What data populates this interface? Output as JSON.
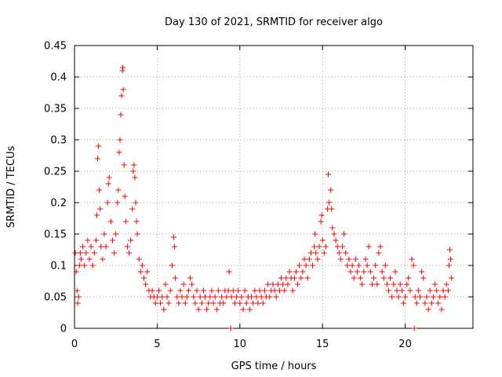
{
  "chart_data": {
    "type": "scatter",
    "title": "Day 130 of 2021, SRMTID for receiver algo",
    "xlabel": "GPS time / hours",
    "ylabel": "SRMTID / TECUs",
    "xlim": [
      0,
      24.1
    ],
    "ylim": [
      0,
      0.45
    ],
    "xticks": [
      0,
      5,
      10,
      15,
      20
    ],
    "xtick_labels": [
      "0",
      "5",
      "10",
      "15",
      "20"
    ],
    "yticks": [
      0,
      0.05,
      0.1,
      0.15,
      0.2,
      0.25,
      0.3,
      0.35,
      0.4,
      0.45
    ],
    "ytick_labels": [
      "0",
      "0.05",
      "0.1",
      "0.15",
      "0.2",
      "0.25",
      "0.3",
      "0.35",
      "0.4",
      "0.45"
    ],
    "grid": true,
    "marker": "+",
    "series": [
      {
        "name": "SRMTID",
        "color": "#ff0000",
        "points": [
          [
            0.05,
            0.12
          ],
          [
            0.1,
            0.09
          ],
          [
            0.15,
            0.06
          ],
          [
            0.2,
            0.04
          ],
          [
            0.25,
            0.05
          ],
          [
            0.3,
            0.1
          ],
          [
            0.35,
            0.12
          ],
          [
            0.4,
            0.11
          ],
          [
            0.5,
            0.13
          ],
          [
            0.6,
            0.1
          ],
          [
            0.7,
            0.12
          ],
          [
            0.8,
            0.14
          ],
          [
            0.9,
            0.11
          ],
          [
            1.0,
            0.13
          ],
          [
            1.1,
            0.1
          ],
          [
            1.2,
            0.12
          ],
          [
            1.3,
            0.14
          ],
          [
            1.35,
            0.18
          ],
          [
            1.4,
            0.27
          ],
          [
            1.45,
            0.29
          ],
          [
            1.5,
            0.22
          ],
          [
            1.55,
            0.19
          ],
          [
            1.6,
            0.13
          ],
          [
            1.7,
            0.11
          ],
          [
            1.8,
            0.15
          ],
          [
            1.9,
            0.13
          ],
          [
            2.0,
            0.2
          ],
          [
            2.05,
            0.23
          ],
          [
            2.1,
            0.24
          ],
          [
            2.2,
            0.17
          ],
          [
            2.3,
            0.14
          ],
          [
            2.4,
            0.12
          ],
          [
            2.5,
            0.15
          ],
          [
            2.6,
            0.2
          ],
          [
            2.65,
            0.22
          ],
          [
            2.7,
            0.28
          ],
          [
            2.75,
            0.3
          ],
          [
            2.8,
            0.34
          ],
          [
            2.85,
            0.37
          ],
          [
            2.9,
            0.41
          ],
          [
            2.92,
            0.415
          ],
          [
            2.95,
            0.38
          ],
          [
            3.0,
            0.26
          ],
          [
            3.05,
            0.21
          ],
          [
            3.1,
            0.17
          ],
          [
            3.2,
            0.13
          ],
          [
            3.3,
            0.12
          ],
          [
            3.4,
            0.14
          ],
          [
            3.5,
            0.19
          ],
          [
            3.55,
            0.25
          ],
          [
            3.6,
            0.26
          ],
          [
            3.65,
            0.24
          ],
          [
            3.7,
            0.2
          ],
          [
            3.75,
            0.17
          ],
          [
            3.8,
            0.15
          ],
          [
            3.9,
            0.11
          ],
          [
            4.0,
            0.09
          ],
          [
            4.1,
            0.1
          ],
          [
            4.2,
            0.08
          ],
          [
            4.3,
            0.07
          ],
          [
            4.4,
            0.09
          ],
          [
            4.5,
            0.06
          ],
          [
            4.6,
            0.05
          ],
          [
            4.7,
            0.06
          ],
          [
            4.8,
            0.05
          ],
          [
            4.9,
            0.04
          ],
          [
            5.0,
            0.05
          ],
          [
            5.1,
            0.06
          ],
          [
            5.2,
            0.04
          ],
          [
            5.3,
            0.05
          ],
          [
            5.4,
            0.03
          ],
          [
            5.5,
            0.07
          ],
          [
            5.6,
            0.05
          ],
          [
            5.7,
            0.04
          ],
          [
            5.8,
            0.06
          ],
          [
            5.9,
            0.1
          ],
          [
            6.0,
            0.145
          ],
          [
            6.05,
            0.13
          ],
          [
            6.1,
            0.08
          ],
          [
            6.2,
            0.05
          ],
          [
            6.3,
            0.04
          ],
          [
            6.4,
            0.06
          ],
          [
            6.5,
            0.05
          ],
          [
            6.6,
            0.07
          ],
          [
            6.7,
            0.04
          ],
          [
            6.8,
            0.05
          ],
          [
            6.9,
            0.06
          ],
          [
            7.0,
            0.08
          ],
          [
            7.1,
            0.07
          ],
          [
            7.2,
            0.05
          ],
          [
            7.3,
            0.04
          ],
          [
            7.4,
            0.06
          ],
          [
            7.5,
            0.03
          ],
          [
            7.6,
            0.05
          ],
          [
            7.7,
            0.04
          ],
          [
            7.8,
            0.06
          ],
          [
            7.9,
            0.05
          ],
          [
            8.0,
            0.03
          ],
          [
            8.1,
            0.04
          ],
          [
            8.2,
            0.05
          ],
          [
            8.3,
            0.06
          ],
          [
            8.4,
            0.04
          ],
          [
            8.5,
            0.05
          ],
          [
            8.6,
            0.03
          ],
          [
            8.7,
            0.06
          ],
          [
            8.8,
            0.04
          ],
          [
            8.9,
            0.05
          ],
          [
            9.0,
            0.04
          ],
          [
            9.1,
            0.06
          ],
          [
            9.2,
            0.05
          ],
          [
            9.3,
            0.06
          ],
          [
            9.35,
            0.09
          ],
          [
            9.45,
            0.0
          ],
          [
            9.5,
            0.05
          ],
          [
            9.6,
            0.06
          ],
          [
            9.7,
            0.04
          ],
          [
            9.8,
            0.05
          ],
          [
            9.9,
            0.06
          ],
          [
            10.0,
            0.04
          ],
          [
            10.1,
            0.05
          ],
          [
            10.2,
            0.03
          ],
          [
            10.3,
            0.06
          ],
          [
            10.4,
            0.04
          ],
          [
            10.5,
            0.05
          ],
          [
            10.6,
            0.03
          ],
          [
            10.7,
            0.05
          ],
          [
            10.8,
            0.04
          ],
          [
            10.9,
            0.06
          ],
          [
            11.0,
            0.05
          ],
          [
            11.1,
            0.04
          ],
          [
            11.2,
            0.06
          ],
          [
            11.3,
            0.05
          ],
          [
            11.4,
            0.04
          ],
          [
            11.5,
            0.06
          ],
          [
            11.6,
            0.05
          ],
          [
            11.7,
            0.07
          ],
          [
            11.8,
            0.05
          ],
          [
            11.9,
            0.06
          ],
          [
            12.0,
            0.07
          ],
          [
            12.1,
            0.06
          ],
          [
            12.2,
            0.05
          ],
          [
            12.3,
            0.07
          ],
          [
            12.4,
            0.06
          ],
          [
            12.5,
            0.08
          ],
          [
            12.6,
            0.07
          ],
          [
            12.7,
            0.06
          ],
          [
            12.8,
            0.08
          ],
          [
            12.9,
            0.07
          ],
          [
            13.0,
            0.09
          ],
          [
            13.1,
            0.08
          ],
          [
            13.2,
            0.06
          ],
          [
            13.3,
            0.08
          ],
          [
            13.4,
            0.09
          ],
          [
            13.5,
            0.07
          ],
          [
            13.6,
            0.1
          ],
          [
            13.7,
            0.08
          ],
          [
            13.8,
            0.09
          ],
          [
            13.9,
            0.11
          ],
          [
            14.0,
            0.1
          ],
          [
            14.1,
            0.08
          ],
          [
            14.2,
            0.11
          ],
          [
            14.3,
            0.12
          ],
          [
            14.4,
            0.1
          ],
          [
            14.5,
            0.13
          ],
          [
            14.55,
            0.15
          ],
          [
            14.6,
            0.12
          ],
          [
            14.7,
            0.11
          ],
          [
            14.8,
            0.13
          ],
          [
            14.9,
            0.17
          ],
          [
            14.95,
            0.18
          ],
          [
            15.0,
            0.14
          ],
          [
            15.1,
            0.12
          ],
          [
            15.2,
            0.13
          ],
          [
            15.3,
            0.19
          ],
          [
            15.35,
            0.245
          ],
          [
            15.4,
            0.2
          ],
          [
            15.5,
            0.22
          ],
          [
            15.55,
            0.19
          ],
          [
            15.6,
            0.16
          ],
          [
            15.7,
            0.15
          ],
          [
            15.8,
            0.14
          ],
          [
            15.9,
            0.13
          ],
          [
            16.0,
            0.12
          ],
          [
            16.1,
            0.11
          ],
          [
            16.2,
            0.13
          ],
          [
            16.3,
            0.15
          ],
          [
            16.4,
            0.12
          ],
          [
            16.5,
            0.1
          ],
          [
            16.6,
            0.11
          ],
          [
            16.7,
            0.09
          ],
          [
            16.8,
            0.1
          ],
          [
            16.9,
            0.08
          ],
          [
            17.0,
            0.11
          ],
          [
            17.1,
            0.09
          ],
          [
            17.2,
            0.1
          ],
          [
            17.3,
            0.08
          ],
          [
            17.4,
            0.07
          ],
          [
            17.5,
            0.09
          ],
          [
            17.6,
            0.11
          ],
          [
            17.7,
            0.1
          ],
          [
            17.8,
            0.13
          ],
          [
            17.9,
            0.09
          ],
          [
            18.0,
            0.07
          ],
          [
            18.1,
            0.08
          ],
          [
            18.2,
            0.1
          ],
          [
            18.3,
            0.07
          ],
          [
            18.4,
            0.12
          ],
          [
            18.5,
            0.13
          ],
          [
            18.6,
            0.09
          ],
          [
            18.7,
            0.08
          ],
          [
            18.8,
            0.1
          ],
          [
            18.9,
            0.07
          ],
          [
            19.0,
            0.06
          ],
          [
            19.1,
            0.08
          ],
          [
            19.2,
            0.05
          ],
          [
            19.3,
            0.07
          ],
          [
            19.4,
            0.09
          ],
          [
            19.5,
            0.06
          ],
          [
            19.6,
            0.05
          ],
          [
            19.7,
            0.07
          ],
          [
            19.8,
            0.06
          ],
          [
            19.9,
            0.04
          ],
          [
            20.0,
            0.05
          ],
          [
            20.1,
            0.07
          ],
          [
            20.2,
            0.08
          ],
          [
            20.3,
            0.06
          ],
          [
            20.4,
            0.11
          ],
          [
            20.5,
            0.1
          ],
          [
            20.55,
            0.0
          ],
          [
            20.6,
            0.05
          ],
          [
            20.7,
            0.04
          ],
          [
            20.8,
            0.06
          ],
          [
            20.9,
            0.05
          ],
          [
            21.0,
            0.09
          ],
          [
            21.1,
            0.08
          ],
          [
            21.2,
            0.04
          ],
          [
            21.3,
            0.05
          ],
          [
            21.4,
            0.03
          ],
          [
            21.5,
            0.06
          ],
          [
            21.6,
            0.04
          ],
          [
            21.7,
            0.05
          ],
          [
            21.8,
            0.07
          ],
          [
            21.9,
            0.06
          ],
          [
            22.0,
            0.04
          ],
          [
            22.1,
            0.05
          ],
          [
            22.2,
            0.03
          ],
          [
            22.3,
            0.06
          ],
          [
            22.4,
            0.05
          ],
          [
            22.5,
            0.07
          ],
          [
            22.6,
            0.06
          ],
          [
            22.65,
            0.1
          ],
          [
            22.7,
            0.125
          ],
          [
            22.75,
            0.11
          ],
          [
            22.8,
            0.08
          ]
        ]
      }
    ]
  }
}
